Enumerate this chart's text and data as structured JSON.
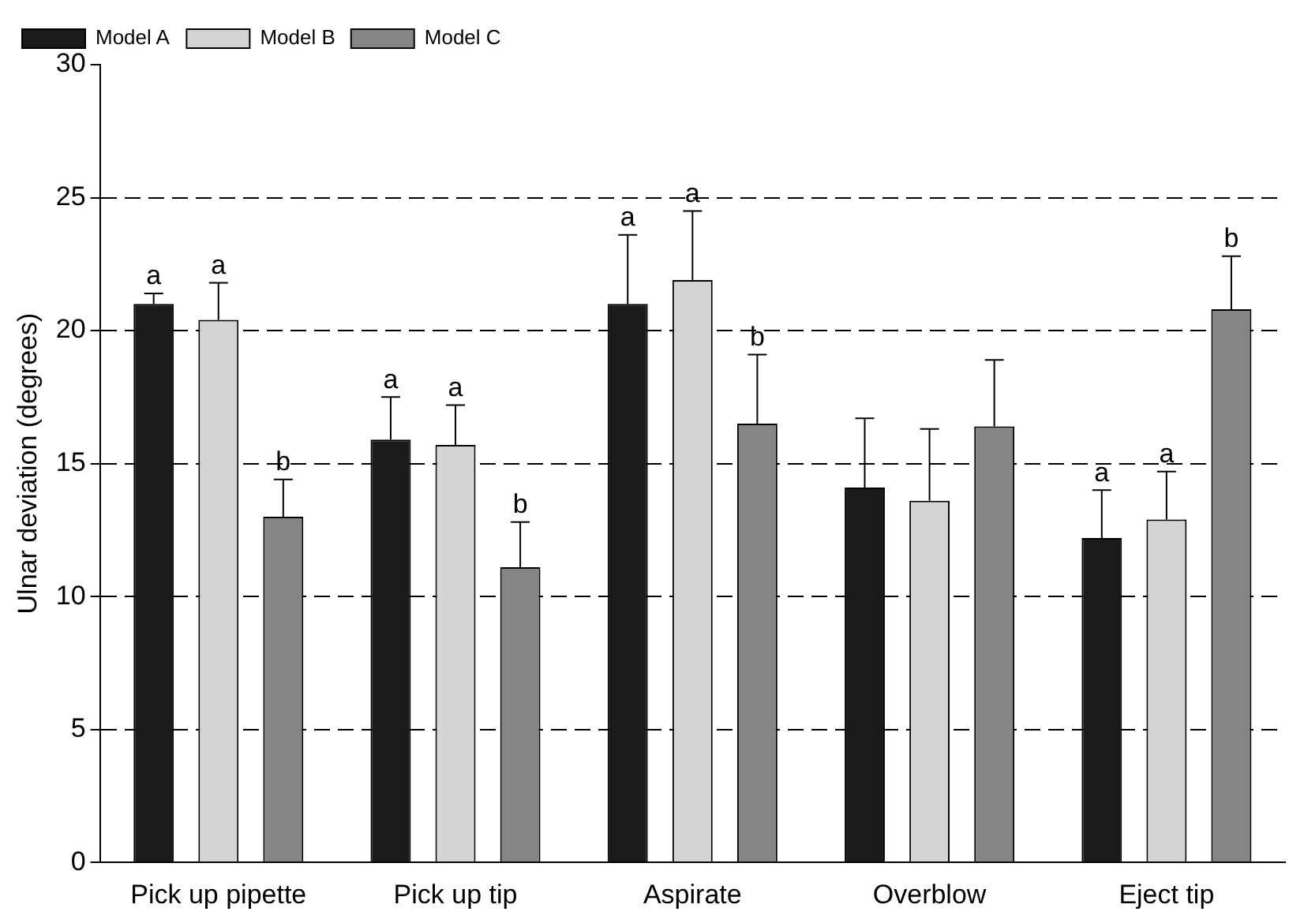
{
  "chart_data": {
    "type": "bar",
    "ylabel": "Ulnar deviation (degrees)",
    "categories": [
      "Pick up pipette",
      "Pick up tip",
      "Aspirate",
      "Overblow",
      "Eject tip"
    ],
    "series": [
      {
        "name": "Model A",
        "color": "#1a1a1a",
        "values": [
          21.0,
          15.9,
          21.0,
          14.1,
          12.2
        ],
        "errors": [
          [
            21.0,
            21.4
          ],
          [
            15.9,
            17.5
          ],
          [
            21.0,
            23.6
          ],
          [
            14.1,
            16.7
          ],
          [
            12.2,
            14.0
          ]
        ],
        "value_labels": [
          "a",
          "a",
          "a",
          null,
          "a"
        ]
      },
      {
        "name": "Model B",
        "color": "#d4d4d4",
        "values": [
          20.4,
          15.7,
          21.9,
          13.6,
          12.9
        ],
        "errors": [
          [
            20.4,
            21.8
          ],
          [
            15.7,
            17.2
          ],
          [
            21.9,
            24.5
          ],
          [
            13.6,
            16.3
          ],
          [
            12.9,
            14.7
          ]
        ],
        "value_labels": [
          "a",
          "a",
          "a",
          null,
          "a"
        ]
      },
      {
        "name": "Model C",
        "color": "#858585",
        "values": [
          13.0,
          11.1,
          16.5,
          16.4,
          20.8
        ],
        "errors": [
          [
            13.0,
            14.4
          ],
          [
            11.1,
            12.8
          ],
          [
            16.5,
            19.1
          ],
          [
            16.4,
            18.9
          ],
          [
            20.8,
            22.8
          ]
        ],
        "value_labels": [
          "b",
          "b",
          "b",
          null,
          "b"
        ]
      }
    ],
    "ylim": [
      0,
      30
    ],
    "yticks": [
      0,
      5,
      10,
      15,
      20,
      25,
      30
    ],
    "grid": "y",
    "line_style": "dashed",
    "legend": "top left"
  }
}
